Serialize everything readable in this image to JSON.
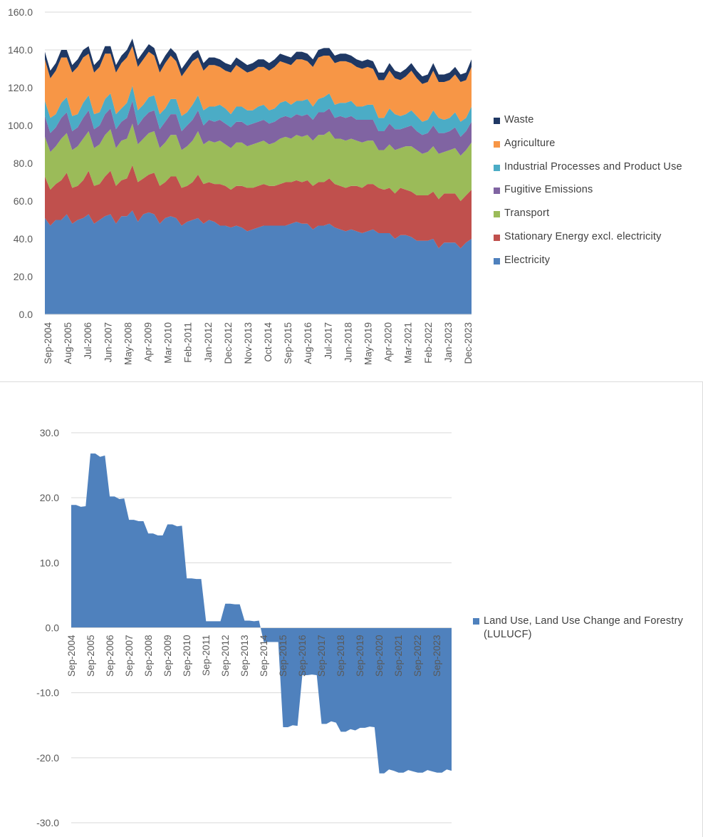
{
  "chart_data": [
    {
      "type": "area",
      "stacked": true,
      "ylim": [
        0,
        160
      ],
      "yticks": [
        "0.0",
        "20.0",
        "40.0",
        "60.0",
        "80.0",
        "100.0",
        "120.0",
        "140.0",
        "160.0"
      ],
      "xtick_labels": [
        "Sep-2004",
        "Aug-2005",
        "Jul-2006",
        "Jun-2007",
        "May-2008",
        "Apr-2009",
        "Mar-2010",
        "Feb-2011",
        "Jan-2012",
        "Dec-2012",
        "Nov-2013",
        "Oct-2014",
        "Sep-2015",
        "Aug-2016",
        "Jul-2017",
        "Jun-2018",
        "May-2019",
        "Apr-2020",
        "Mar-2021",
        "Feb-2022",
        "Jan-2023",
        "Dec-2023"
      ],
      "x_start": "Sep-2004",
      "x_step": "quarter",
      "grid": true,
      "legend_position": "right",
      "series": [
        {
          "name": "Electricity",
          "color": "#4F81BD",
          "values": [
            51,
            47,
            50,
            50,
            53,
            48,
            50,
            51,
            53,
            48,
            50,
            52,
            53,
            48,
            52,
            52,
            55,
            49,
            53,
            54,
            53,
            48,
            51,
            52,
            51,
            47,
            49,
            50,
            51,
            48,
            50,
            49,
            47,
            47,
            46,
            47,
            46,
            44,
            45,
            46,
            47,
            47,
            47,
            47,
            47,
            48,
            49,
            48,
            48,
            45,
            47,
            47,
            48,
            46,
            45,
            44,
            45,
            44,
            43,
            44,
            45,
            43,
            43,
            43,
            40,
            42,
            42,
            41,
            39,
            39,
            39,
            40,
            35,
            38,
            38,
            38,
            35,
            38,
            40
          ]
        },
        {
          "name": "Stationary Energy excl. electricity",
          "color": "#C0504D",
          "values": [
            22,
            19,
            19,
            21,
            22,
            19,
            18,
            20,
            23,
            20,
            19,
            21,
            23,
            20,
            19,
            20,
            24,
            21,
            19,
            20,
            22,
            20,
            19,
            21,
            22,
            20,
            19,
            20,
            23,
            21,
            20,
            20,
            22,
            21,
            20,
            21,
            22,
            23,
            22,
            22,
            22,
            21,
            21,
            22,
            23,
            22,
            22,
            22,
            23,
            23,
            23,
            23,
            24,
            23,
            23,
            23,
            23,
            24,
            24,
            25,
            24,
            24,
            23,
            24,
            24,
            25,
            24,
            24,
            24,
            24,
            24,
            25,
            26,
            26,
            26,
            26,
            25,
            25,
            26
          ]
        },
        {
          "name": "Transport",
          "color": "#9BBB59",
          "values": [
            21,
            20,
            20,
            22,
            21,
            20,
            21,
            22,
            21,
            20,
            21,
            22,
            22,
            20,
            21,
            21,
            22,
            20,
            21,
            22,
            22,
            20,
            21,
            22,
            22,
            20,
            21,
            22,
            23,
            21,
            22,
            22,
            23,
            22,
            22,
            23,
            23,
            22,
            23,
            23,
            23,
            22,
            23,
            24,
            24,
            23,
            24,
            24,
            24,
            24,
            25,
            25,
            25,
            24,
            25,
            25,
            25,
            24,
            24,
            23,
            23,
            20,
            21,
            23,
            23,
            21,
            23,
            24,
            24,
            22,
            23,
            24,
            24,
            22,
            23,
            24,
            24,
            24,
            25
          ]
        },
        {
          "name": "Fugitive Emissions",
          "color": "#8064A2",
          "values": [
            11,
            10,
            10,
            11,
            11,
            10,
            10,
            11,
            11,
            10,
            10,
            11,
            11,
            10,
            10,
            11,
            12,
            10,
            11,
            11,
            11,
            10,
            11,
            11,
            11,
            10,
            11,
            11,
            11,
            10,
            11,
            11,
            11,
            11,
            11,
            11,
            11,
            11,
            11,
            11,
            11,
            11,
            11,
            11,
            11,
            11,
            11,
            11,
            11,
            11,
            12,
            12,
            12,
            11,
            12,
            12,
            12,
            11,
            12,
            11,
            11,
            10,
            10,
            11,
            11,
            10,
            10,
            11,
            10,
            10,
            10,
            11,
            11,
            10,
            10,
            11,
            10,
            10,
            11
          ]
        },
        {
          "name": "Industrial Processes and Product Use",
          "color": "#4BACC6",
          "values": [
            8,
            8,
            7,
            8,
            8,
            8,
            7,
            8,
            8,
            8,
            7,
            8,
            8,
            8,
            7,
            8,
            8,
            8,
            7,
            8,
            8,
            8,
            7,
            8,
            8,
            8,
            7,
            8,
            8,
            8,
            7,
            8,
            8,
            8,
            7,
            8,
            8,
            8,
            7,
            8,
            8,
            7,
            7,
            8,
            8,
            7,
            7,
            8,
            8,
            7,
            7,
            8,
            8,
            7,
            7,
            8,
            8,
            7,
            7,
            8,
            8,
            7,
            7,
            8,
            8,
            7,
            7,
            8,
            8,
            7,
            7,
            8,
            8,
            7,
            7,
            8,
            8,
            7,
            8
          ]
        },
        {
          "name": "Agriculture",
          "color": "#F79646",
          "values": [
            22,
            21,
            23,
            24,
            21,
            23,
            25,
            24,
            22,
            22,
            24,
            24,
            21,
            22,
            24,
            24,
            21,
            23,
            24,
            24,
            21,
            22,
            24,
            23,
            20,
            21,
            23,
            23,
            20,
            21,
            22,
            22,
            20,
            20,
            22,
            22,
            20,
            20,
            21,
            21,
            20,
            21,
            22,
            22,
            20,
            21,
            22,
            22,
            20,
            21,
            22,
            22,
            20,
            22,
            22,
            22,
            20,
            21,
            20,
            20,
            19,
            20,
            20,
            20,
            19,
            19,
            20,
            21,
            20,
            20,
            20,
            21,
            19,
            20,
            20,
            20,
            21,
            20,
            21
          ]
        },
        {
          "name": "Waste",
          "color": "#1F3864",
          "values": [
            4,
            4,
            4,
            4,
            4,
            4,
            4,
            4,
            4,
            4,
            4,
            4,
            4,
            4,
            4,
            4,
            4,
            4,
            4,
            4,
            4,
            4,
            4,
            4,
            4,
            4,
            4,
            4,
            4,
            4,
            4,
            4,
            4,
            4,
            4,
            4,
            4,
            4,
            4,
            4,
            4,
            4,
            4,
            4,
            4,
            4,
            4,
            4,
            4,
            4,
            4,
            4,
            4,
            4,
            4,
            4,
            4,
            4,
            4,
            4,
            4,
            4,
            4,
            4,
            4,
            4,
            4,
            4,
            4,
            4,
            4,
            4,
            4,
            4,
            4,
            4,
            4,
            4,
            4
          ]
        }
      ]
    },
    {
      "type": "area",
      "ylim": [
        -30,
        30
      ],
      "yticks": [
        "-30.0",
        "-20.0",
        "-10.0",
        "0.0",
        "10.0",
        "20.0",
        "30.0"
      ],
      "xtick_labels": [
        "Sep-2004",
        "Sep-2005",
        "Sep-2006",
        "Sep-2007",
        "Sep-2008",
        "Sep-2009",
        "Sep-2010",
        "Sep-2011",
        "Sep-2012",
        "Sep-2013",
        "Sep-2014",
        "Sep-2015",
        "Sep-2016",
        "Sep-2017",
        "Sep-2018",
        "Sep-2019",
        "Sep-2020",
        "Sep-2021",
        "Sep-2022",
        "Sep-2023"
      ],
      "x_start": "Sep-2004",
      "x_step": "quarter",
      "grid": true,
      "legend_position": "right",
      "series": [
        {
          "name": "Land Use, Land Use Change and Forestry (LULUCF)",
          "color": "#4F81BD",
          "values": [
            18.9,
            18.9,
            18.6,
            18.7,
            26.8,
            26.8,
            26.3,
            26.5,
            20.2,
            20.2,
            19.8,
            19.9,
            16.6,
            16.6,
            16.4,
            16.4,
            14.5,
            14.5,
            14.2,
            14.2,
            15.9,
            15.9,
            15.6,
            15.7,
            7.6,
            7.6,
            7.5,
            7.5,
            1.0,
            1.0,
            1.0,
            1.0,
            3.7,
            3.7,
            3.6,
            3.6,
            1.1,
            1.1,
            1.0,
            1.1,
            -2.2,
            -2.2,
            -2.2,
            -2.2,
            -15.3,
            -15.3,
            -15.0,
            -15.1,
            -7.3,
            -7.3,
            -7.2,
            -7.3,
            -14.8,
            -14.8,
            -14.4,
            -14.6,
            -16.0,
            -16.0,
            -15.6,
            -15.8,
            -15.4,
            -15.4,
            -15.2,
            -15.3,
            -22.4,
            -22.4,
            -21.8,
            -22.0,
            -22.3,
            -22.3,
            -21.9,
            -22.1,
            -22.3,
            -22.3,
            -21.9,
            -22.1,
            -22.3,
            -22.3,
            -21.8,
            -22.0
          ]
        }
      ]
    }
  ]
}
